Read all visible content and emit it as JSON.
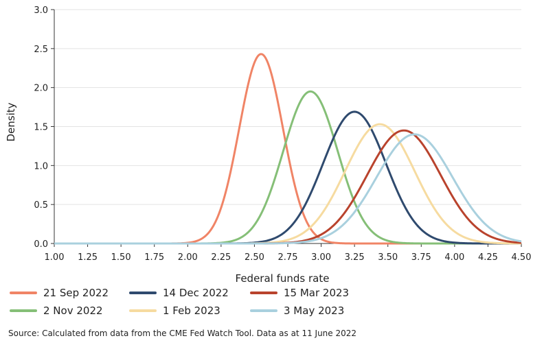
{
  "chart_data": {
    "type": "line",
    "title": "",
    "xlabel": "Federal funds rate",
    "ylabel": "Density",
    "xlim": [
      1.0,
      4.5
    ],
    "ylim": [
      0.0,
      3.0
    ],
    "x_ticks": [
      "1.00",
      "1.25",
      "1.50",
      "1.75",
      "2.00",
      "2.25",
      "2.50",
      "2.75",
      "3.00",
      "3.25",
      "3.50",
      "3.75",
      "4.00",
      "4.25",
      "4.50"
    ],
    "y_ticks": [
      "0.0",
      "0.5",
      "1.0",
      "1.5",
      "2.0",
      "2.5",
      "3.0"
    ],
    "grid": "horizontal",
    "series": [
      {
        "name": "21 Sep 2022",
        "color": "#F08466",
        "peak_x": 2.55,
        "peak_y": 2.43
      },
      {
        "name": "2 Nov 2022",
        "color": "#85BF77",
        "peak_x": 2.92,
        "peak_y": 1.95
      },
      {
        "name": "14 Dec 2022",
        "color": "#2F4A6E",
        "peak_x": 3.25,
        "peak_y": 1.69
      },
      {
        "name": "1 Feb 2023",
        "color": "#F6DBA0",
        "peak_x": 3.44,
        "peak_y": 1.53
      },
      {
        "name": "15 Mar 2023",
        "color": "#B9432D",
        "peak_x": 3.62,
        "peak_y": 1.45
      },
      {
        "name": "3 May 2023",
        "color": "#A9D0DE",
        "peak_x": 3.7,
        "peak_y": 1.4
      }
    ]
  },
  "source_note": "Source: Calculated from data from the CME Fed Watch Tool. Data as at 11 June 2022"
}
